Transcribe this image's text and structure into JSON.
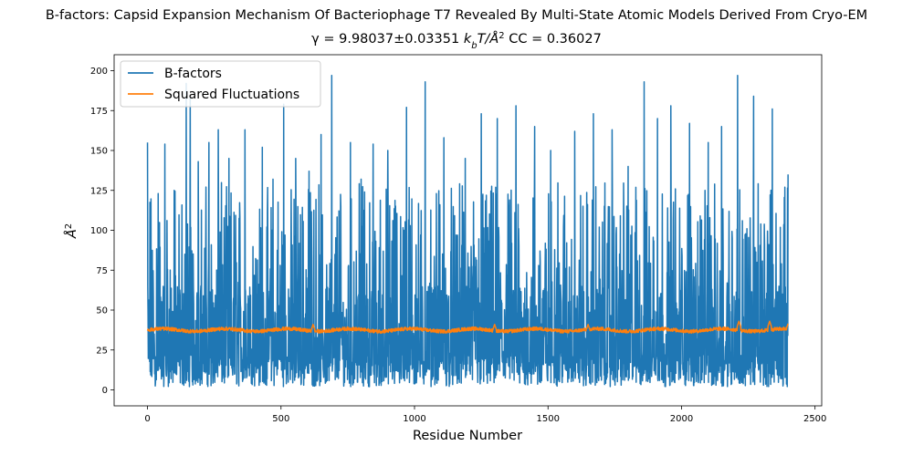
{
  "colors": {
    "bfactor": "#1f77b4",
    "fluct": "#ff7f0e"
  },
  "chart_data": {
    "type": "line",
    "title": "B-factors: Capsid Expansion Mechanism Of Bacteriophage T7 Revealed By Multi-State Atomic Models Derived From Cryo-EM",
    "subtitle_prefix": "γ = 9.98037±0.03351 ",
    "subtitle_unit_k": "k",
    "subtitle_unit_b": "b",
    "subtitle_unit_rest": "T/Å",
    "subtitle_unit_sup": "2",
    "subtitle_cc": "  CC = 0.36027",
    "xlabel": "Residue Number",
    "ylabel_base": "Å",
    "ylabel_sup": "2",
    "xlim": [
      -125,
      2525
    ],
    "ylim": [
      -10,
      210
    ],
    "xticks": [
      0,
      500,
      1000,
      1500,
      2000,
      2500
    ],
    "yticks": [
      0,
      25,
      50,
      75,
      100,
      125,
      150,
      175,
      200
    ],
    "xtick_labels": [
      "0",
      "500",
      "1000",
      "1500",
      "2000",
      "2500"
    ],
    "ytick_labels": [
      "0",
      "25",
      "50",
      "75",
      "100",
      "125",
      "150",
      "175",
      "200"
    ],
    "legend_position": "upper-left",
    "series": [
      {
        "name": "B-factors",
        "n_points": 2400,
        "typical_range": [
          1,
          130
        ],
        "peaks": [
          {
            "x": 0,
            "y": 155
          },
          {
            "x": 40,
            "y": 123
          },
          {
            "x": 65,
            "y": 154
          },
          {
            "x": 100,
            "y": 125
          },
          {
            "x": 145,
            "y": 192
          },
          {
            "x": 160,
            "y": 183
          },
          {
            "x": 190,
            "y": 143
          },
          {
            "x": 230,
            "y": 155
          },
          {
            "x": 265,
            "y": 163
          },
          {
            "x": 305,
            "y": 145
          },
          {
            "x": 365,
            "y": 163
          },
          {
            "x": 430,
            "y": 152
          },
          {
            "x": 470,
            "y": 132
          },
          {
            "x": 510,
            "y": 179
          },
          {
            "x": 555,
            "y": 145
          },
          {
            "x": 605,
            "y": 137
          },
          {
            "x": 650,
            "y": 160
          },
          {
            "x": 690,
            "y": 197
          },
          {
            "x": 760,
            "y": 155
          },
          {
            "x": 800,
            "y": 132
          },
          {
            "x": 845,
            "y": 154
          },
          {
            "x": 900,
            "y": 150
          },
          {
            "x": 970,
            "y": 177
          },
          {
            "x": 1040,
            "y": 193
          },
          {
            "x": 1110,
            "y": 158
          },
          {
            "x": 1190,
            "y": 145
          },
          {
            "x": 1250,
            "y": 173
          },
          {
            "x": 1310,
            "y": 170
          },
          {
            "x": 1380,
            "y": 178
          },
          {
            "x": 1450,
            "y": 165
          },
          {
            "x": 1510,
            "y": 150
          },
          {
            "x": 1600,
            "y": 162
          },
          {
            "x": 1670,
            "y": 173
          },
          {
            "x": 1740,
            "y": 163
          },
          {
            "x": 1800,
            "y": 140
          },
          {
            "x": 1860,
            "y": 193
          },
          {
            "x": 1910,
            "y": 170
          },
          {
            "x": 1960,
            "y": 178
          },
          {
            "x": 2030,
            "y": 167
          },
          {
            "x": 2100,
            "y": 155
          },
          {
            "x": 2150,
            "y": 165
          },
          {
            "x": 2210,
            "y": 197
          },
          {
            "x": 2270,
            "y": 184
          },
          {
            "x": 2340,
            "y": 176
          },
          {
            "x": 2400,
            "y": 135
          }
        ]
      },
      {
        "name": "Squared Fluctuations",
        "n_points": 2400,
        "baseline": 37.5,
        "typical_range": [
          35,
          43
        ],
        "peaks": [
          {
            "x": 620,
            "y": 41
          },
          {
            "x": 1300,
            "y": 41
          },
          {
            "x": 1650,
            "y": 41
          },
          {
            "x": 2215,
            "y": 43
          },
          {
            "x": 2330,
            "y": 43
          },
          {
            "x": 2400,
            "y": 42
          }
        ]
      }
    ]
  }
}
